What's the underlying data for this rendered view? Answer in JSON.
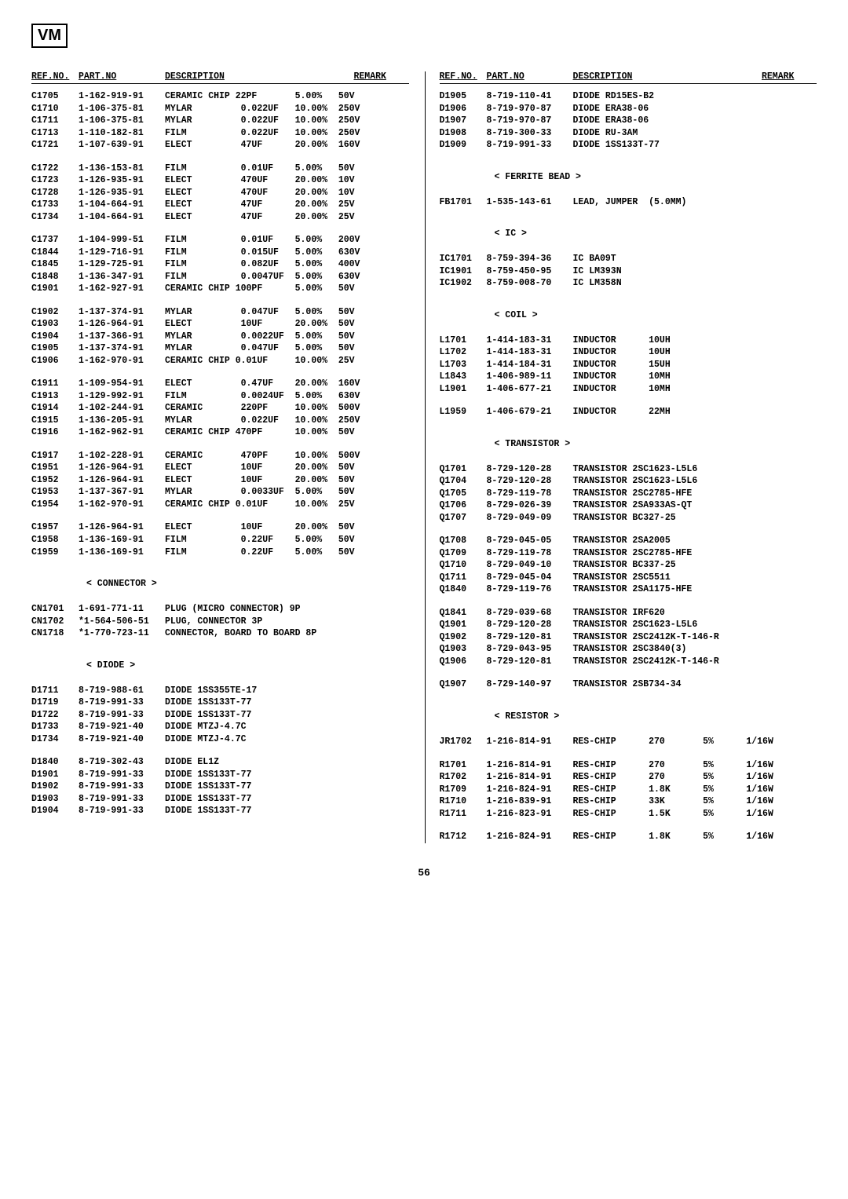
{
  "logo": "VM",
  "page_number": "56",
  "headers": {
    "ref": "REF.NO.",
    "part": "PART.NO",
    "desc": "DESCRIPTION",
    "remark": "REMARK"
  },
  "sections": {
    "connector": "< CONNECTOR >",
    "diode": "< DIODE >",
    "ferrite": "< FERRITE BEAD >",
    "ic": "< IC >",
    "coil": "< COIL >",
    "transistor": "< TRANSISTOR >",
    "resistor": "< RESISTOR >"
  },
  "left": [
    {
      "ref": "C1705",
      "part": "1-162-919-91",
      "desc": "CERAMIC CHIP 22PF",
      "pct": "5.00%",
      "volt": "50V"
    },
    {
      "ref": "C1710",
      "part": "1-106-375-81",
      "desc": "MYLAR",
      "val": "0.022UF",
      "pct": "10.00%",
      "volt": "250V"
    },
    {
      "ref": "C1711",
      "part": "1-106-375-81",
      "desc": "MYLAR",
      "val": "0.022UF",
      "pct": "10.00%",
      "volt": "250V"
    },
    {
      "ref": "C1713",
      "part": "1-110-182-81",
      "desc": "FILM",
      "val": "0.022UF",
      "pct": "10.00%",
      "volt": "250V"
    },
    {
      "ref": "C1721",
      "part": "1-107-639-91",
      "desc": "ELECT",
      "val": "47UF",
      "pct": "20.00%",
      "volt": "160V"
    },
    {
      "spacer": true
    },
    {
      "ref": "C1722",
      "part": "1-136-153-81",
      "desc": "FILM",
      "val": "0.01UF",
      "pct": "5.00%",
      "volt": "50V"
    },
    {
      "ref": "C1723",
      "part": "1-126-935-91",
      "desc": "ELECT",
      "val": "470UF",
      "pct": "20.00%",
      "volt": "10V"
    },
    {
      "ref": "C1728",
      "part": "1-126-935-91",
      "desc": "ELECT",
      "val": "470UF",
      "pct": "20.00%",
      "volt": "10V"
    },
    {
      "ref": "C1733",
      "part": "1-104-664-91",
      "desc": "ELECT",
      "val": "47UF",
      "pct": "20.00%",
      "volt": "25V"
    },
    {
      "ref": "C1734",
      "part": "1-104-664-91",
      "desc": "ELECT",
      "val": "47UF",
      "pct": "20.00%",
      "volt": "25V"
    },
    {
      "spacer": true
    },
    {
      "ref": "C1737",
      "part": "1-104-999-51",
      "desc": "FILM",
      "val": "0.01UF",
      "pct": "5.00%",
      "volt": "200V"
    },
    {
      "ref": "C1844",
      "part": "1-129-716-91",
      "desc": "FILM",
      "val": "0.015UF",
      "pct": "5.00%",
      "volt": "630V"
    },
    {
      "ref": "C1845",
      "part": "1-129-725-91",
      "desc": "FILM",
      "val": "0.082UF",
      "pct": "5.00%",
      "volt": "400V"
    },
    {
      "ref": "C1848",
      "part": "1-136-347-91",
      "desc": "FILM",
      "val": "0.0047UF",
      "pct": "5.00%",
      "volt": "630V"
    },
    {
      "ref": "C1901",
      "part": "1-162-927-91",
      "desc": "CERAMIC CHIP 100PF",
      "pct": "5.00%",
      "volt": "50V"
    },
    {
      "spacer": true
    },
    {
      "ref": "C1902",
      "part": "1-137-374-91",
      "desc": "MYLAR",
      "val": "0.047UF",
      "pct": "5.00%",
      "volt": "50V"
    },
    {
      "ref": "C1903",
      "part": "1-126-964-91",
      "desc": "ELECT",
      "val": "10UF",
      "pct": "20.00%",
      "volt": "50V"
    },
    {
      "ref": "C1904",
      "part": "1-137-366-91",
      "desc": "MYLAR",
      "val": "0.0022UF",
      "pct": "5.00%",
      "volt": "50V"
    },
    {
      "ref": "C1905",
      "part": "1-137-374-91",
      "desc": "MYLAR",
      "val": "0.047UF",
      "pct": "5.00%",
      "volt": "50V"
    },
    {
      "ref": "C1906",
      "part": "1-162-970-91",
      "desc": "CERAMIC CHIP 0.01UF",
      "pct": "10.00%",
      "volt": "25V"
    },
    {
      "spacer": true
    },
    {
      "ref": "C1911",
      "part": "1-109-954-91",
      "desc": "ELECT",
      "val": "0.47UF",
      "pct": "20.00%",
      "volt": "160V"
    },
    {
      "ref": "C1913",
      "part": "1-129-992-91",
      "desc": "FILM",
      "val": "0.0024UF",
      "pct": "5.00%",
      "volt": "630V"
    },
    {
      "ref": "C1914",
      "part": "1-102-244-91",
      "desc": "CERAMIC",
      "val": "220PF",
      "pct": "10.00%",
      "volt": "500V"
    },
    {
      "ref": "C1915",
      "part": "1-136-205-91",
      "desc": "MYLAR",
      "val": "0.022UF",
      "pct": "10.00%",
      "volt": "250V"
    },
    {
      "ref": "C1916",
      "part": "1-162-962-91",
      "desc": "CERAMIC CHIP 470PF",
      "pct": "10.00%",
      "volt": "50V"
    },
    {
      "spacer": true
    },
    {
      "ref": "C1917",
      "part": "1-102-228-91",
      "desc": "CERAMIC",
      "val": "470PF",
      "pct": "10.00%",
      "volt": "500V"
    },
    {
      "ref": "C1951",
      "part": "1-126-964-91",
      "desc": "ELECT",
      "val": "10UF",
      "pct": "20.00%",
      "volt": "50V"
    },
    {
      "ref": "C1952",
      "part": "1-126-964-91",
      "desc": "ELECT",
      "val": "10UF",
      "pct": "20.00%",
      "volt": "50V"
    },
    {
      "ref": "C1953",
      "part": "1-137-367-91",
      "desc": "MYLAR",
      "val": "0.0033UF",
      "pct": "5.00%",
      "volt": "50V"
    },
    {
      "ref": "C1954",
      "part": "1-162-970-91",
      "desc": "CERAMIC CHIP 0.01UF",
      "pct": "10.00%",
      "volt": "25V"
    },
    {
      "spacer": true
    },
    {
      "ref": "C1957",
      "part": "1-126-964-91",
      "desc": "ELECT",
      "val": "10UF",
      "pct": "20.00%",
      "volt": "50V"
    },
    {
      "ref": "C1958",
      "part": "1-136-169-91",
      "desc": "FILM",
      "val": "0.22UF",
      "pct": "5.00%",
      "volt": "50V"
    },
    {
      "ref": "C1959",
      "part": "1-136-169-91",
      "desc": "FILM",
      "val": "0.22UF",
      "pct": "5.00%",
      "volt": "50V"
    },
    {
      "spacer": true
    },
    {
      "section": "connector"
    },
    {
      "spacer": true
    },
    {
      "ref": "CN1701",
      "part": "1-691-771-11",
      "desc": "PLUG (MICRO CONNECTOR) 9P"
    },
    {
      "ref": "CN1702",
      "part": "*1-564-506-51",
      "desc": "PLUG, CONNECTOR 3P"
    },
    {
      "ref": "CN1718",
      "part": "*1-770-723-11",
      "desc": "CONNECTOR, BOARD TO BOARD 8P"
    },
    {
      "spacer": true
    },
    {
      "section": "diode"
    },
    {
      "spacer": true
    },
    {
      "ref": "D1711",
      "part": "8-719-988-61",
      "desc": "DIODE 1SS355TE-17"
    },
    {
      "ref": "D1719",
      "part": "8-719-991-33",
      "desc": "DIODE 1SS133T-77"
    },
    {
      "ref": "D1722",
      "part": "8-719-991-33",
      "desc": "DIODE 1SS133T-77"
    },
    {
      "ref": "D1733",
      "part": "8-719-921-40",
      "desc": "DIODE MTZJ-4.7C"
    },
    {
      "ref": "D1734",
      "part": "8-719-921-40",
      "desc": "DIODE MTZJ-4.7C"
    },
    {
      "spacer": true
    },
    {
      "ref": "D1840",
      "part": "8-719-302-43",
      "desc": "DIODE EL1Z"
    },
    {
      "ref": "D1901",
      "part": "8-719-991-33",
      "desc": "DIODE 1SS133T-77"
    },
    {
      "ref": "D1902",
      "part": "8-719-991-33",
      "desc": "DIODE 1SS133T-77"
    },
    {
      "ref": "D1903",
      "part": "8-719-991-33",
      "desc": "DIODE 1SS133T-77"
    },
    {
      "ref": "D1904",
      "part": "8-719-991-33",
      "desc": "DIODE 1SS133T-77"
    }
  ],
  "right": [
    {
      "ref": "D1905",
      "part": "8-719-110-41",
      "desc": "DIODE RD15ES-B2"
    },
    {
      "ref": "D1906",
      "part": "8-719-970-87",
      "desc": "DIODE ERA38-06"
    },
    {
      "ref": "D1907",
      "part": "8-719-970-87",
      "desc": "DIODE ERA38-06"
    },
    {
      "ref": "D1908",
      "part": "8-719-300-33",
      "desc": "DIODE RU-3AM"
    },
    {
      "ref": "D1909",
      "part": "8-719-991-33",
      "desc": "DIODE 1SS133T-77"
    },
    {
      "spacer": true
    },
    {
      "section": "ferrite"
    },
    {
      "spacer": true
    },
    {
      "ref": "FB1701",
      "part": "1-535-143-61",
      "desc": "LEAD, JUMPER  (5.0MM)"
    },
    {
      "spacer": true
    },
    {
      "section": "ic"
    },
    {
      "spacer": true
    },
    {
      "ref": "IC1701",
      "part": "8-759-394-36",
      "desc": "IC BA09T"
    },
    {
      "ref": "IC1901",
      "part": "8-759-450-95",
      "desc": "IC LM393N"
    },
    {
      "ref": "IC1902",
      "part": "8-759-008-70",
      "desc": "IC LM358N"
    },
    {
      "spacer": true
    },
    {
      "section": "coil"
    },
    {
      "spacer": true
    },
    {
      "ref": "L1701",
      "part": "1-414-183-31",
      "desc": "INDUCTOR",
      "val": "10UH"
    },
    {
      "ref": "L1702",
      "part": "1-414-183-31",
      "desc": "INDUCTOR",
      "val": "10UH"
    },
    {
      "ref": "L1703",
      "part": "1-414-184-31",
      "desc": "INDUCTOR",
      "val": "15UH"
    },
    {
      "ref": "L1843",
      "part": "1-406-989-11",
      "desc": "INDUCTOR",
      "val": "10MH"
    },
    {
      "ref": "L1901",
      "part": "1-406-677-21",
      "desc": "INDUCTOR",
      "val": "10MH"
    },
    {
      "spacer": true
    },
    {
      "ref": "L1959",
      "part": "1-406-679-21",
      "desc": "INDUCTOR",
      "val": "22MH"
    },
    {
      "spacer": true
    },
    {
      "section": "transistor"
    },
    {
      "spacer": true
    },
    {
      "ref": "Q1701",
      "part": "8-729-120-28",
      "desc": "TRANSISTOR 2SC1623-L5L6"
    },
    {
      "ref": "Q1704",
      "part": "8-729-120-28",
      "desc": "TRANSISTOR 2SC1623-L5L6"
    },
    {
      "ref": "Q1705",
      "part": "8-729-119-78",
      "desc": "TRANSISTOR 2SC2785-HFE"
    },
    {
      "ref": "Q1706",
      "part": "8-729-026-39",
      "desc": "TRANSISTOR 2SA933AS-QT"
    },
    {
      "ref": "Q1707",
      "part": "8-729-049-09",
      "desc": "TRANSISTOR BC327-25"
    },
    {
      "spacer": true
    },
    {
      "ref": "Q1708",
      "part": "8-729-045-05",
      "desc": "TRANSISTOR 2SA2005"
    },
    {
      "ref": "Q1709",
      "part": "8-729-119-78",
      "desc": "TRANSISTOR 2SC2785-HFE"
    },
    {
      "ref": "Q1710",
      "part": "8-729-049-10",
      "desc": "TRANSISTOR BC337-25"
    },
    {
      "ref": "Q1711",
      "part": "8-729-045-04",
      "desc": "TRANSISTOR 2SC5511"
    },
    {
      "ref": "Q1840",
      "part": "8-729-119-76",
      "desc": "TRANSISTOR 2SA1175-HFE"
    },
    {
      "spacer": true
    },
    {
      "ref": "Q1841",
      "part": "8-729-039-68",
      "desc": "TRANSISTOR IRF620"
    },
    {
      "ref": "Q1901",
      "part": "8-729-120-28",
      "desc": "TRANSISTOR 2SC1623-L5L6"
    },
    {
      "ref": "Q1902",
      "part": "8-729-120-81",
      "desc": "TRANSISTOR 2SC2412K-T-146-R"
    },
    {
      "ref": "Q1903",
      "part": "8-729-043-95",
      "desc": "TRANSISTOR 2SC3840(3)"
    },
    {
      "ref": "Q1906",
      "part": "8-729-120-81",
      "desc": "TRANSISTOR 2SC2412K-T-146-R"
    },
    {
      "spacer": true
    },
    {
      "ref": "Q1907",
      "part": "8-729-140-97",
      "desc": "TRANSISTOR 2SB734-34"
    },
    {
      "spacer": true
    },
    {
      "section": "resistor"
    },
    {
      "spacer": true
    },
    {
      "ref": "JR1702",
      "part": "1-216-814-91",
      "desc": "RES-CHIP",
      "val": "270",
      "pct": "5%",
      "volt": "1/16W"
    },
    {
      "spacer": true
    },
    {
      "ref": "R1701",
      "part": "1-216-814-91",
      "desc": "RES-CHIP",
      "val": "270",
      "pct": "5%",
      "volt": "1/16W"
    },
    {
      "ref": "R1702",
      "part": "1-216-814-91",
      "desc": "RES-CHIP",
      "val": "270",
      "pct": "5%",
      "volt": "1/16W"
    },
    {
      "ref": "R1709",
      "part": "1-216-824-91",
      "desc": "RES-CHIP",
      "val": "1.8K",
      "pct": "5%",
      "volt": "1/16W"
    },
    {
      "ref": "R1710",
      "part": "1-216-839-91",
      "desc": "RES-CHIP",
      "val": "33K",
      "pct": "5%",
      "volt": "1/16W"
    },
    {
      "ref": "R1711",
      "part": "1-216-823-91",
      "desc": "RES-CHIP",
      "val": "1.5K",
      "pct": "5%",
      "volt": "1/16W"
    },
    {
      "spacer": true
    },
    {
      "ref": "R1712",
      "part": "1-216-824-91",
      "desc": "RES-CHIP",
      "val": "1.8K",
      "pct": "5%",
      "volt": "1/16W"
    }
  ]
}
